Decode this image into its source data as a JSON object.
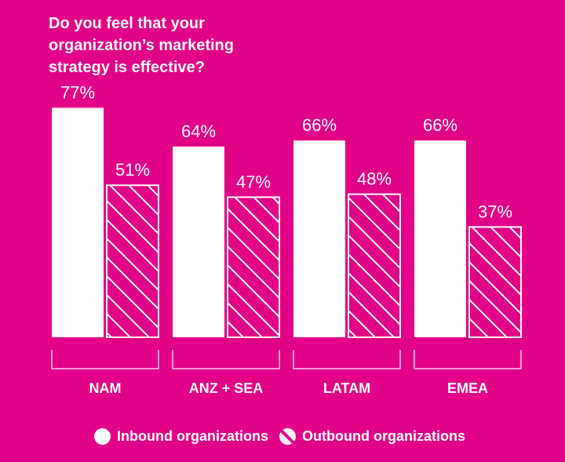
{
  "title": "Do you feel that your organization’s marketing strategy is effective?",
  "colors": {
    "background": "#E10087",
    "bars": "#FFFFFF"
  },
  "legend": {
    "inbound": "Inbound organizations",
    "outbound": "Outbound organizations"
  },
  "chart_data": {
    "type": "bar",
    "title": "Do you feel that your organization’s marketing strategy is effective?",
    "categories": [
      "NAM",
      "ANZ + SEA",
      "LATAM",
      "EMEA"
    ],
    "series": [
      {
        "name": "Inbound organizations",
        "style": "solid",
        "values": [
          77,
          64,
          66,
          66
        ],
        "labels": [
          "77%",
          "64%",
          "66%",
          "66%"
        ]
      },
      {
        "name": "Outbound organizations",
        "style": "hatched",
        "values": [
          51,
          47,
          48,
          37
        ],
        "labels": [
          "51%",
          "47%",
          "48%",
          "37%"
        ]
      }
    ],
    "ylim": [
      0,
      100
    ],
    "xlabel": "",
    "ylabel": "",
    "grid": false,
    "legend_position": "bottom"
  }
}
